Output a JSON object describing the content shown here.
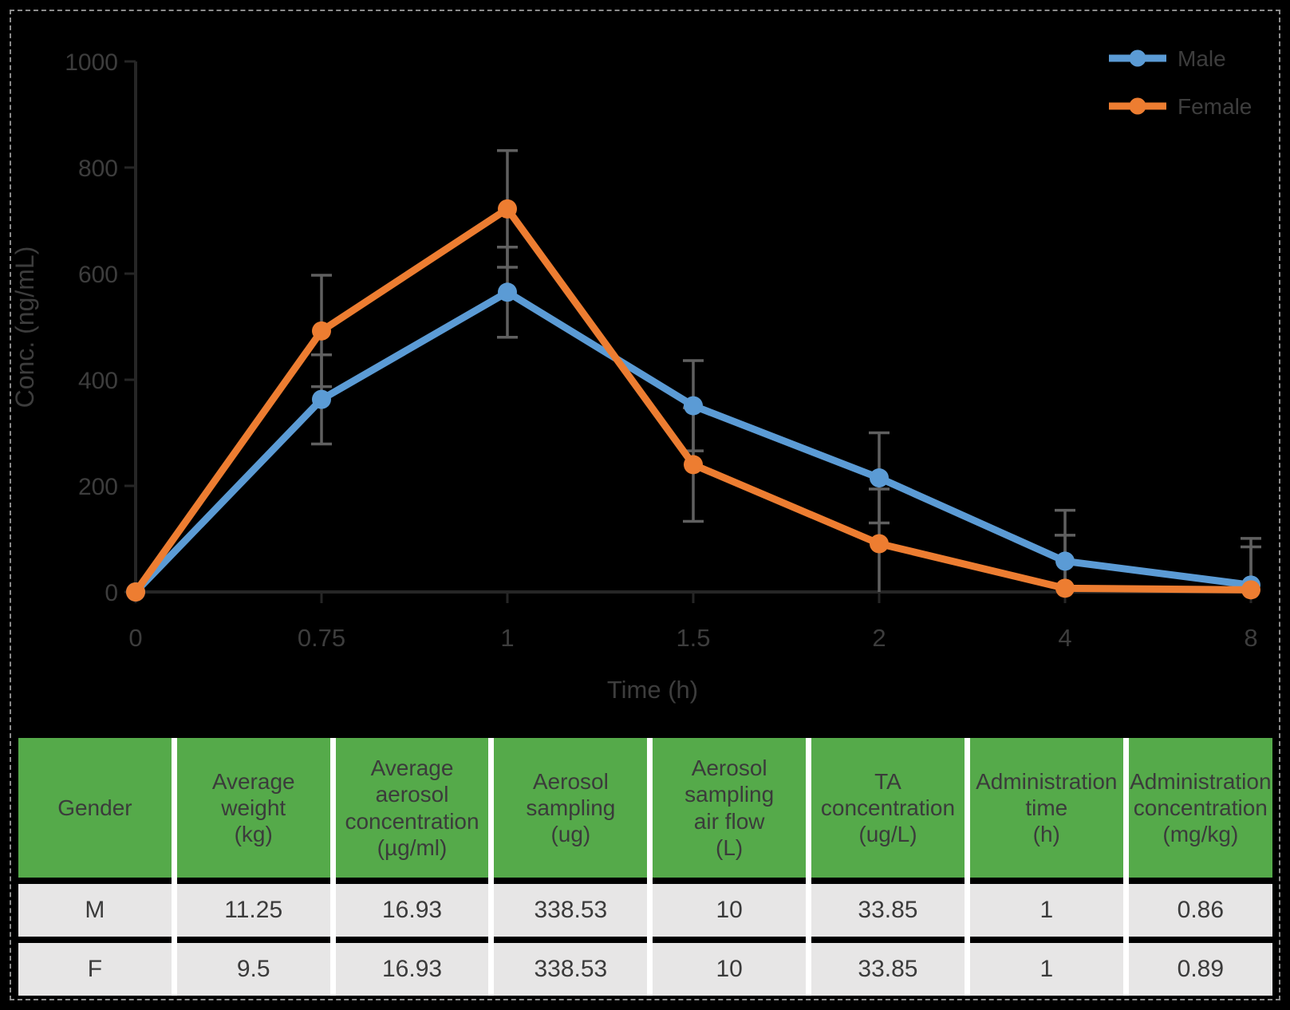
{
  "figure": {
    "background": "#000000",
    "border_color": "#8c8c8c"
  },
  "chart_data": {
    "type": "line",
    "title": "",
    "xlabel": "Time (h)",
    "ylabel": "Conc. (ng/mL)",
    "categories": [
      "0",
      "0.75",
      "1",
      "1.5",
      "2",
      "4",
      "8"
    ],
    "ylim": [
      0,
      1000
    ],
    "yticks": [
      0,
      200,
      400,
      600,
      800,
      1000
    ],
    "grid": false,
    "legend_position": "top-right",
    "axis_color": "#262626",
    "text_color": "#3d3d3d",
    "error_bar_color": "#606060",
    "series": [
      {
        "name": "Male",
        "color": "#5B9BD5",
        "values": [
          0,
          363,
          565,
          351,
          215,
          58,
          13
        ],
        "errors": [
          0,
          84,
          85,
          85,
          85,
          96,
          88
        ]
      },
      {
        "name": "Female",
        "color": "#ED7D31",
        "values": [
          0,
          492,
          722,
          240,
          91,
          7,
          4
        ],
        "errors": [
          0,
          105,
          110,
          107,
          103,
          100,
          81
        ]
      }
    ]
  },
  "table": {
    "header_bg": "#55AA4A",
    "row_bg": "#E7E6E6",
    "text_color": "#3b3b3b",
    "headers": [
      "Gender",
      "Average\nweight\n(kg)",
      "Average\naerosol\nconcentration\n(µg/ml)",
      "Aerosol\nsampling\n(ug)",
      "Aerosol\nsampling\nair flow\n(L)",
      "TA\nconcentration\n(ug/L)",
      "Administration\ntime\n(h)",
      "Administration\nconcentration\n(mg/kg)"
    ],
    "rows": [
      {
        "cells": [
          "M",
          "11.25",
          "16.93",
          "338.53",
          "10",
          "33.85",
          "1",
          "0.86"
        ]
      },
      {
        "cells": [
          "F",
          "9.5",
          "16.93",
          "338.53",
          "10",
          "33.85",
          "1",
          "0.89"
        ]
      }
    ]
  }
}
